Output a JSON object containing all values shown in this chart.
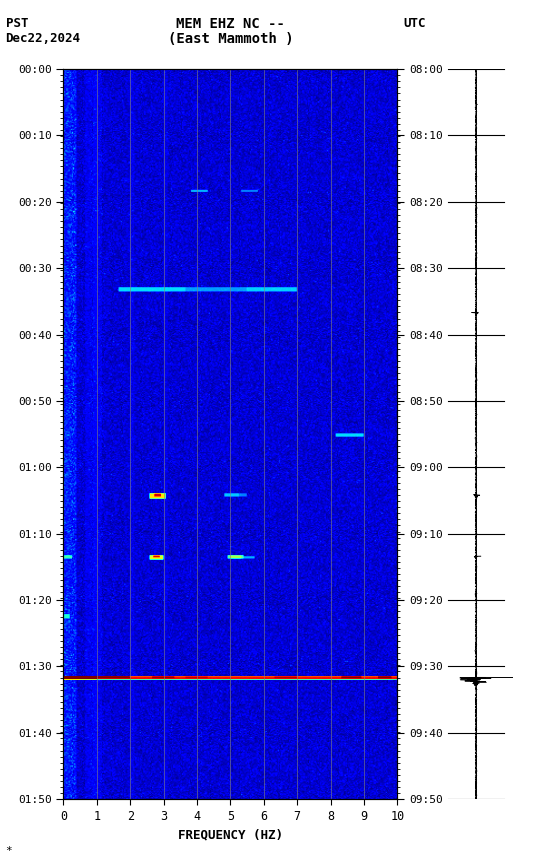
{
  "title_line1": "MEM EHZ NC --",
  "title_line2": "(East Mammoth )",
  "left_label": "PST",
  "left_date": "Dec22,2024",
  "right_label": "UTC",
  "freq_min": 0,
  "freq_max": 10,
  "freq_ticks": [
    0,
    1,
    2,
    3,
    4,
    5,
    6,
    7,
    8,
    9,
    10
  ],
  "time_labels_left": [
    "00:00",
    "00:10",
    "00:20",
    "00:30",
    "00:40",
    "00:50",
    "01:00",
    "01:10",
    "01:20",
    "01:30",
    "01:40",
    "01:50"
  ],
  "time_labels_right": [
    "08:00",
    "08:10",
    "08:20",
    "08:30",
    "08:40",
    "08:50",
    "09:00",
    "09:10",
    "09:20",
    "09:30",
    "09:40",
    "09:50"
  ],
  "xlabel": "FREQUENCY (HZ)",
  "colormap": "jet",
  "fig_bg": "white"
}
